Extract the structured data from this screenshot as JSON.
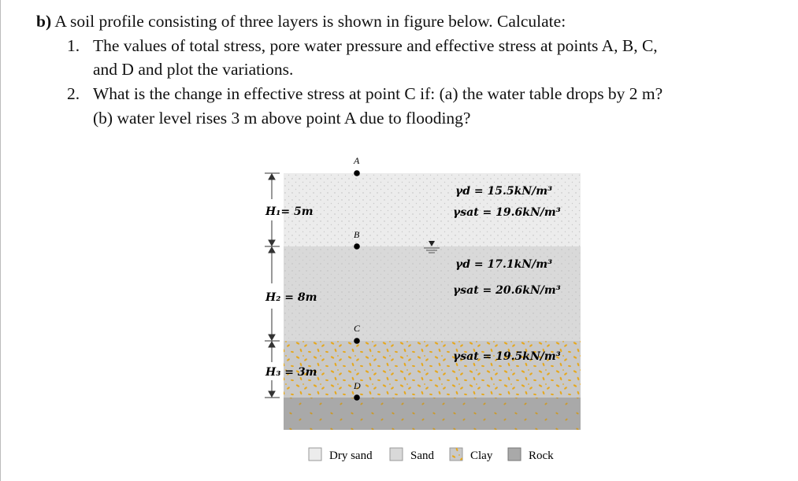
{
  "problem": {
    "label": "b)",
    "intro": "A soil profile consisting of three layers is shown in figure below. Calculate:",
    "items": [
      {
        "num": "1.",
        "lines": [
          "The values of total stress, pore water pressure and effective stress at points A, B, C,",
          "and D and plot the variations."
        ]
      },
      {
        "num": "2.",
        "lines": [
          "What is the change in effective stress at point C if: (a) the water table drops by 2 m?",
          "(b) water level rises 3 m above point A due to flooding?"
        ]
      }
    ]
  },
  "figure": {
    "points": [
      "A",
      "B",
      "C",
      "D"
    ],
    "heights": [
      "H₁= 5m",
      "H₂ = 8m",
      "H₃ = 3m"
    ],
    "layer1": {
      "gd": "γd = 15.5kN/m³",
      "gsat": "γsat = 19.6kN/m³"
    },
    "layer2": {
      "gd": "γd = 17.1kN/m³",
      "gsat": "γsat = 20.6kN/m³"
    },
    "layer3": {
      "gsat": "γsat = 19.5kN/m³"
    },
    "legend": [
      "Dry sand",
      "Sand",
      "Clay",
      "Rock"
    ],
    "colors": {
      "dry_sand": "#ececec",
      "sand": "#d9d9d9",
      "clay": "#c9c9c9",
      "clay_grain": "#e5a820",
      "rock": "#a9a9a9"
    }
  }
}
